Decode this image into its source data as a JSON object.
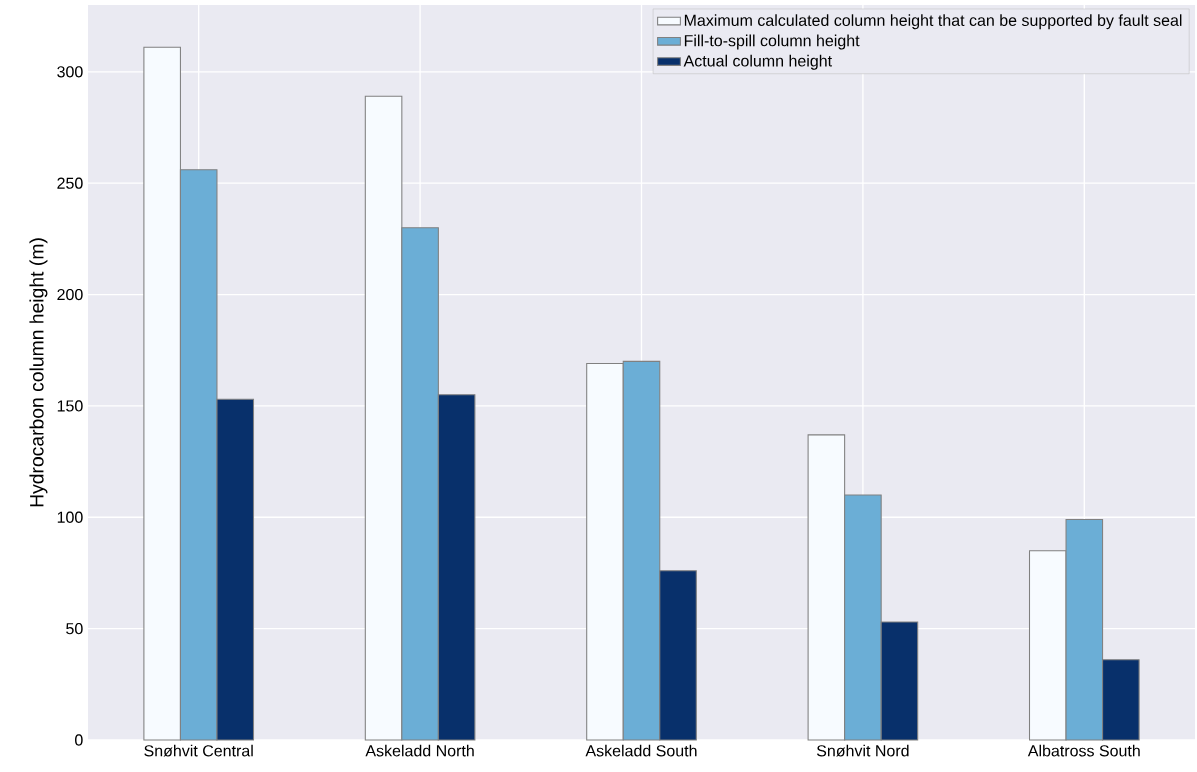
{
  "chart_data": {
    "type": "bar",
    "ylabel": "Hydrocarbon column height (m)",
    "categories": [
      "Snøhvit Central",
      "Askeladd North",
      "Askeladd South",
      "Snøhvit Nord",
      "Albatross South"
    ],
    "series": [
      {
        "name": "Maximum calculated column height that can be supported by fault seal",
        "color": "#f7fbff",
        "values": [
          311,
          289,
          169,
          137,
          85
        ]
      },
      {
        "name": "Fill-to-spill column height",
        "color": "#6baed6",
        "values": [
          256,
          230,
          170,
          110,
          99
        ]
      },
      {
        "name": "Actual column height",
        "color": "#08306b",
        "values": [
          153,
          155,
          76,
          53,
          36
        ]
      }
    ],
    "ylim": [
      0,
      330
    ],
    "yticks": [
      0,
      50,
      100,
      150,
      200,
      250,
      300
    ],
    "grid": true,
    "legend": "top right"
  }
}
